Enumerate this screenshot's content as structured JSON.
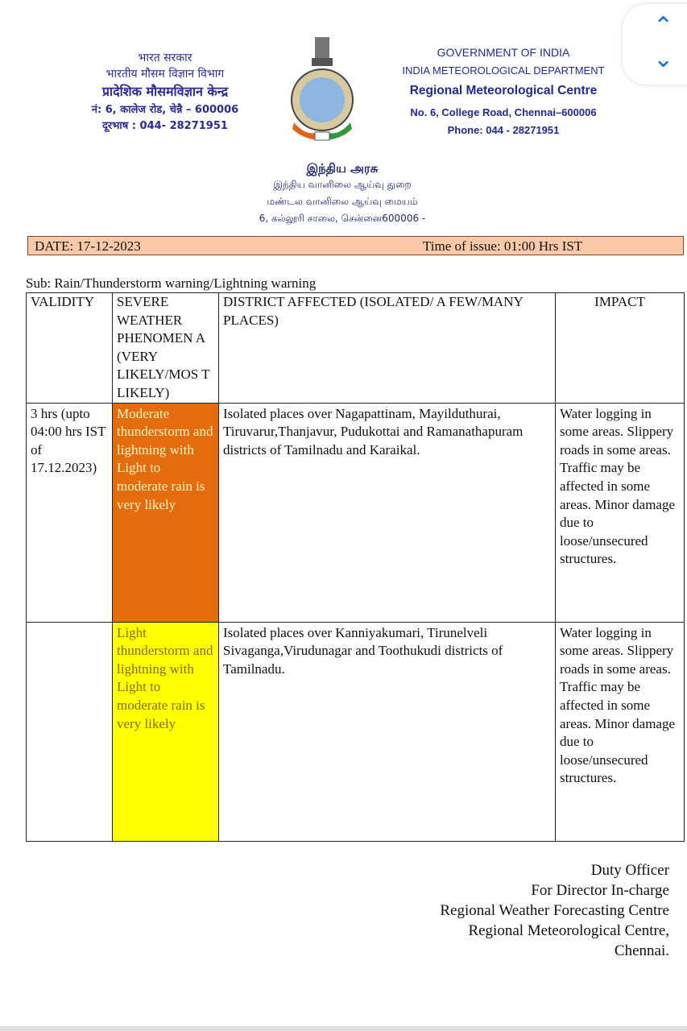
{
  "header": {
    "hindi": [
      "भारत सरकार",
      "भारतीय मौसम विज्ञान विभाग",
      "प्रादेशिक मौसमविज्ञान केन्द्र",
      "नं: 6, कालेज रोड, चेन्नै – 600006",
      "दूरभाष : 044- 28271951"
    ],
    "english": [
      "GOVERNMENT OF INDIA",
      "INDIA METEOROLOGICAL DEPARTMENT",
      "Regional Meteorological Centre",
      "No. 6, College Road, Chennai–600006",
      "Phone:  044 - 28271951"
    ],
    "tamil": [
      "இந்திய அரசு",
      "இந்திய வானிலை ஆய்வு துறை",
      "மண்டல வானிலை ஆய்வு மையம்",
      "6, கல்லூரி சாலை, சென்னை600006 -"
    ]
  },
  "date_label": "DATE: 17-12-2023",
  "time_label": "Time of issue:   01:00  Hrs IST",
  "subject": "Sub: Rain/Thunderstorm warning/Lightning warning",
  "table": {
    "headers": [
      "VALIDITY",
      "SEVERE WEATHER PHENOMEN A (VERY LIKELY/MOS T LIKELY)",
      "DISTRICT AFFECTED (ISOLATED/ A FEW/MANY PLACES)",
      "IMPACT"
    ],
    "rows": [
      {
        "validity": "3 hrs (upto 04:00 hrs IST of 17.12.2023)",
        "phenomena": "Moderate thunderstorm and lightning with Light to moderate rain is very likely",
        "districts": "Isolated places over Nagapattinam, Mayilduthurai, Tiruvarur,Thanjavur, Pudukottai and Ramanathapuram districts of Tamilnadu and Karaikal.",
        "impact": "Water logging in some areas. Slippery roads in some areas. Traffic may be affected in some areas. Minor damage due to loose/unsecured structures.",
        "color": "#e46b0e"
      },
      {
        "validity": "",
        "phenomena": "Light thunderstorm and lightning with Light to moderate rain is very likely",
        "districts": "Isolated places over Kanniyakumari, Tirunelveli Sivaganga,Virudunagar and Toothukudi districts of Tamilnadu.",
        "impact": "Water logging in some areas. Slippery roads in some areas. Traffic may be affected in some areas. Minor damage due to loose/unsecured structures.",
        "color": "#ffff00"
      }
    ]
  },
  "signature": [
    "Duty Officer",
    "For Director In-charge",
    "Regional Weather Forecasting Centre",
    "Regional Meteorological Centre,",
    "Chennai."
  ],
  "nav": {
    "up_icon": "chevron-up",
    "down_icon": "chevron-down"
  }
}
